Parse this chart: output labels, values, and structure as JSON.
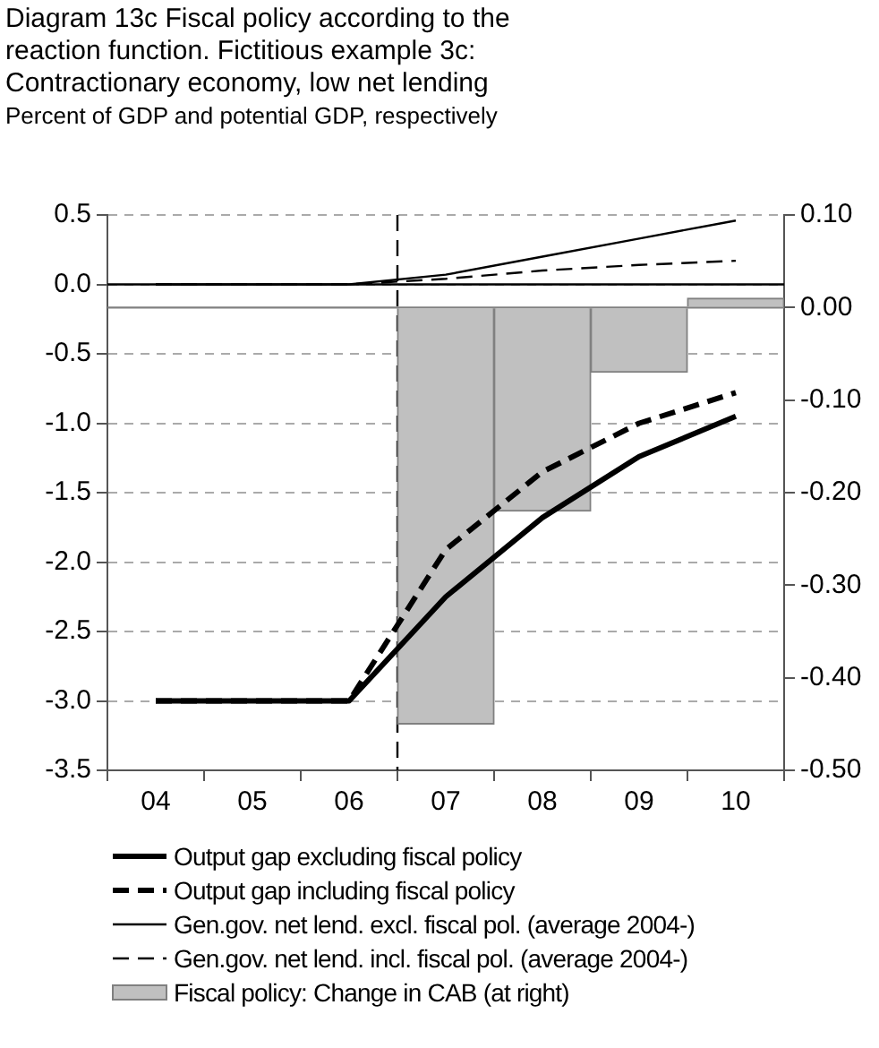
{
  "chart_data": {
    "type": "line",
    "title": "Diagram 13c Fiscal policy according to the reaction function. Fictitious example 3c: Contractionary economy, low net lending",
    "subtitle": "Percent of GDP and potential GDP, respectively",
    "x": [
      2004,
      2005,
      2006,
      2007,
      2008,
      2009,
      2010
    ],
    "xlim": [
      2003.5,
      2010.5
    ],
    "xticks": [
      {
        "value": 2003.5,
        "label": null
      },
      {
        "value": 2004,
        "label": "04"
      },
      {
        "value": 2004.5,
        "label": null
      },
      {
        "value": 2005,
        "label": "05"
      },
      {
        "value": 2005.5,
        "label": null
      },
      {
        "value": 2006,
        "label": "06"
      },
      {
        "value": 2006.5,
        "label": null
      },
      {
        "value": 2007,
        "label": "07"
      },
      {
        "value": 2007.5,
        "label": null
      },
      {
        "value": 2008,
        "label": "08"
      },
      {
        "value": 2008.5,
        "label": null
      },
      {
        "value": 2009,
        "label": "09"
      },
      {
        "value": 2009.5,
        "label": null
      },
      {
        "value": 2010,
        "label": "10"
      },
      {
        "value": 2010.5,
        "label": null
      }
    ],
    "ylim": [
      -3.5,
      0.5
    ],
    "yticks": [
      {
        "value": -3.5,
        "label": "-3.5"
      },
      {
        "value": -3,
        "label": "-3.0"
      },
      {
        "value": -2.5,
        "label": "-2.5"
      },
      {
        "value": -2,
        "label": "-2.0"
      },
      {
        "value": -1.5,
        "label": "-1.5"
      },
      {
        "value": -1,
        "label": "-1.0"
      },
      {
        "value": -0.5,
        "label": "-0.5"
      },
      {
        "value": 0,
        "label": "0.0"
      },
      {
        "value": 0.5,
        "label": "0.5"
      }
    ],
    "y2lim": [
      -0.5,
      0.1
    ],
    "y2ticks": [
      {
        "value": -0.5,
        "label": "-0.50"
      },
      {
        "value": -0.4,
        "label": "-0.40"
      },
      {
        "value": -0.3,
        "label": "-0.30"
      },
      {
        "value": -0.2,
        "label": "-0.20"
      },
      {
        "value": -0.1,
        "label": "-0.10"
      },
      {
        "value": 0,
        "label": "0.00"
      },
      {
        "value": 0.1,
        "label": "0.10"
      }
    ],
    "grid": "y",
    "legend": "bottom",
    "marker": "none",
    "series": [
      {
        "name": "Output gap  excluding fiscal policy",
        "color": "#000000",
        "line_style": "solid",
        "values": [
          -3.0,
          -3.0,
          -3.0,
          -2.25,
          -1.68,
          -1.24,
          -0.95
        ]
      },
      {
        "name": "Output gap  including fiscal policy",
        "color": "#000000",
        "line_style": "dashed",
        "values": [
          -3.0,
          -3.0,
          -3.0,
          -1.91,
          -1.35,
          -1.0,
          -0.78
        ]
      },
      {
        "name": "Gen.gov. net lend. excl. fiscal pol.  (average 2004-)",
        "color": "#000000",
        "line_style": "solid",
        "values": [
          0.0,
          0.0,
          0.0,
          0.07,
          0.2,
          0.33,
          0.46
        ]
      },
      {
        "name": "Gen.gov. net lend. incl. fiscal pol. (average 2004-)",
        "color": "#000000",
        "line_style": "dashed",
        "values": [
          0.0,
          0.0,
          0.0,
          0.04,
          0.1,
          0.14,
          0.17
        ]
      },
      {
        "name": "Fiscal policy: Change in CAB (at right)",
        "type": "bar",
        "axis": "y2",
        "color": "#c0c0c0",
        "values": [
          0,
          0,
          0,
          -0.45,
          -0.22,
          -0.07,
          0.01
        ]
      }
    ],
    "ref_lines": [
      {
        "axis": "y",
        "value": 0,
        "color": "#000000",
        "line_style": "solid"
      },
      {
        "axis": "y2",
        "value": 0,
        "color": "#808080",
        "line_style": "solid"
      },
      {
        "axis": "x",
        "value": 2006.5,
        "color": "#000000",
        "line_style": "dashed"
      }
    ]
  }
}
